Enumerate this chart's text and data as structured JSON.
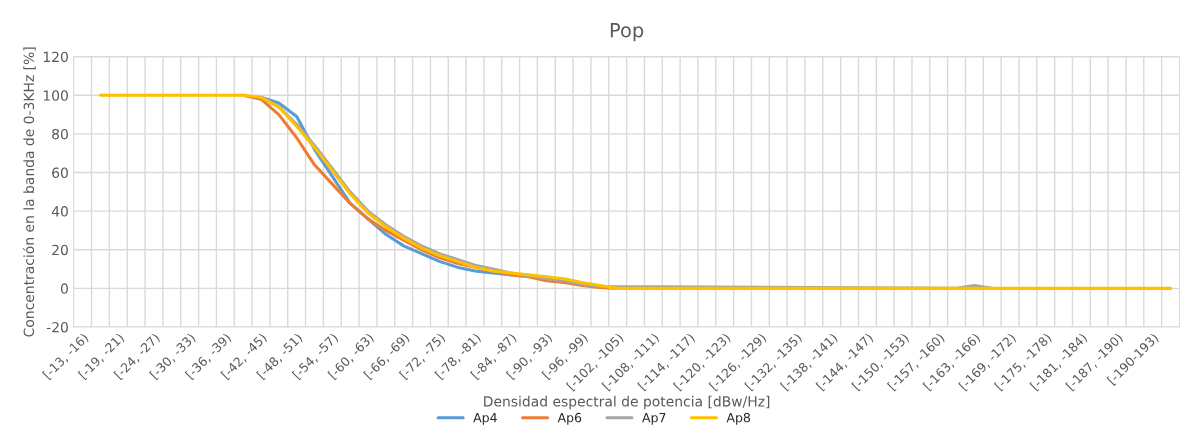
{
  "chart_data": {
    "type": "line",
    "title": "Pop",
    "xlabel": "Densidad espectral de potencia [dBw/Hz]",
    "ylabel": "Concentración en la banda de 0-3KHz [%]",
    "categories": [
      "[-13, -16)",
      null,
      "[-19, -21)",
      null,
      "[-24, -27)",
      null,
      "[-30, -33)",
      null,
      "[-36, -39)",
      null,
      "[-42, -45)",
      null,
      "[-48, -51)",
      null,
      "[-54, -57)",
      null,
      "[-60, -63)",
      null,
      "[-66, -69)",
      null,
      "[-72, -75)",
      null,
      "[-78, -81)",
      null,
      "[-84, -87)",
      null,
      "[-90, -93)",
      null,
      "[-96, -99)",
      null,
      "[-102, -105)",
      null,
      "[-108, -111)",
      null,
      "[-114, -117)",
      null,
      "[-120, -123)",
      null,
      "[-126, -129)",
      null,
      "[-132, -135)",
      null,
      "[-138, -141)",
      null,
      "[-144, -147)",
      null,
      "[-150, -153)",
      null,
      "[-157, -160)",
      null,
      "[-163, -166)",
      null,
      "[-169, -172)",
      null,
      "[-175, -178)",
      null,
      "[-181, -184)",
      null,
      "[-187, -190)",
      null,
      "[-190-193)",
      null
    ],
    "series": [
      {
        "name": "Ap4",
        "color": "#5b9bd5",
        "values": [
          null,
          null,
          null,
          null,
          null,
          null,
          null,
          null,
          null,
          null,
          99,
          96,
          89,
          72,
          58,
          44,
          36,
          28,
          22,
          18,
          14,
          11,
          9,
          8,
          7,
          null,
          null,
          null,
          null,
          null,
          null,
          null,
          null,
          null,
          null,
          null,
          null,
          null,
          null,
          null,
          null,
          null,
          null,
          null,
          null,
          null,
          null,
          null,
          null,
          null,
          null,
          null,
          null,
          null,
          null,
          null,
          null,
          null,
          null,
          null,
          null,
          null
        ]
      },
      {
        "name": "Ap6",
        "color": "#ed7d31",
        "values": [
          null,
          null,
          null,
          null,
          null,
          null,
          null,
          null,
          null,
          100,
          98,
          90,
          78,
          64,
          54,
          44,
          36,
          30,
          25,
          20,
          16,
          13,
          11,
          9,
          7,
          6,
          4,
          3,
          1.5,
          0.5,
          0,
          null,
          null,
          null,
          null,
          null,
          null,
          null,
          null,
          null,
          null,
          null,
          null,
          null,
          null,
          null,
          null,
          null,
          null,
          null,
          null,
          null,
          null,
          null,
          null,
          null,
          null,
          null,
          null,
          null,
          null,
          null
        ]
      },
      {
        "name": "Ap7",
        "color": "#a5a5a5",
        "values": [
          null,
          null,
          null,
          null,
          null,
          null,
          null,
          null,
          null,
          null,
          99,
          94,
          85,
          74,
          62,
          50,
          40,
          33,
          27,
          22,
          18,
          15,
          12,
          10,
          8,
          null,
          5,
          4,
          2,
          1,
          null,
          null,
          null,
          null,
          null,
          null,
          null,
          null,
          null,
          null,
          null,
          null,
          null,
          null,
          null,
          null,
          null,
          null,
          null,
          0,
          1.5,
          0,
          null,
          null,
          null,
          null,
          null,
          null,
          null,
          null,
          null,
          null
        ]
      },
      {
        "name": "Ap8",
        "color": "#ffc000",
        "values": [
          null,
          100,
          100,
          100,
          100,
          100,
          100,
          100,
          100,
          100,
          99,
          94,
          84,
          73,
          61,
          49,
          39,
          32,
          26,
          21,
          17,
          14,
          11,
          9,
          8,
          7,
          6,
          5,
          3,
          1.5,
          0,
          0,
          0,
          0,
          0,
          0,
          0,
          0,
          0,
          0,
          0,
          0,
          0,
          0,
          0,
          0,
          0,
          0,
          0,
          0,
          0,
          0,
          0,
          0,
          0,
          0,
          0,
          0,
          0,
          0,
          0,
          0
        ]
      }
    ],
    "ylim": [
      -20,
      120
    ],
    "yticks": [
      -20,
      0,
      20,
      40,
      60,
      80,
      100,
      120
    ],
    "grid": true,
    "legend": "bottom"
  }
}
